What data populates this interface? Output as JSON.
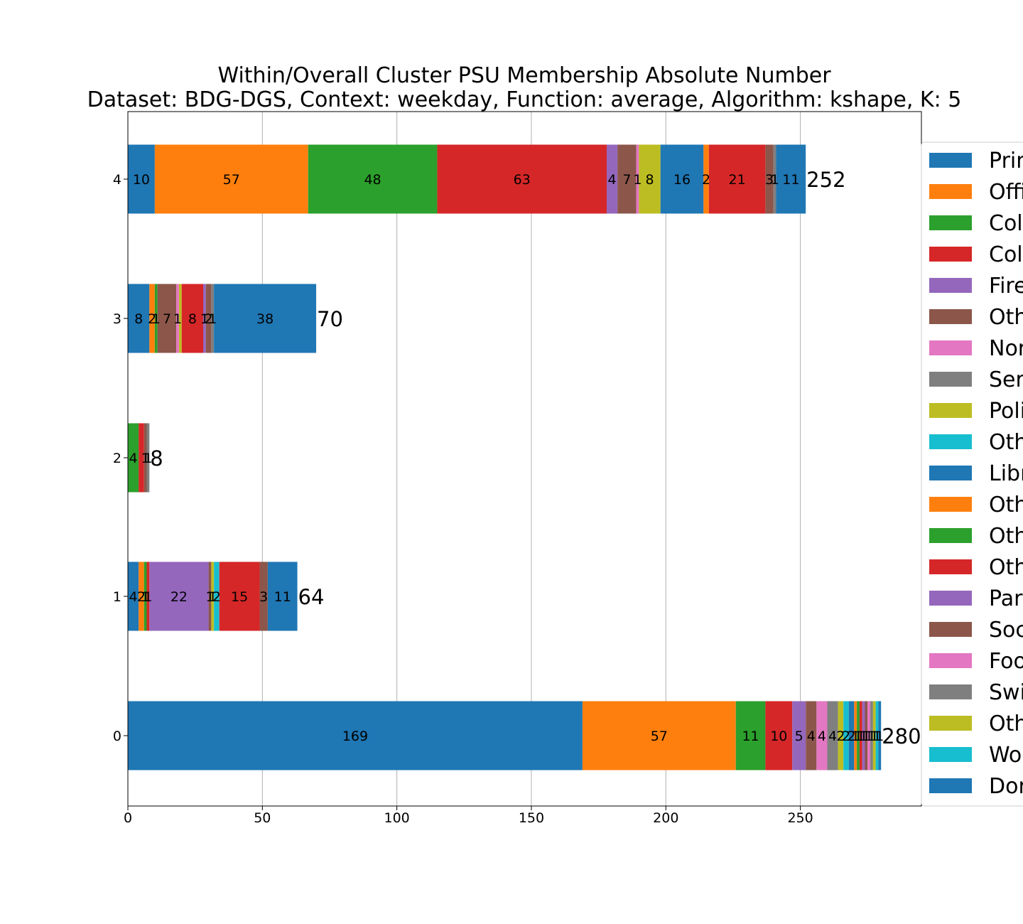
{
  "chart_data": {
    "type": "bar",
    "orientation": "horizontal",
    "stacked": true,
    "title": "Within/Overall Cluster PSU Membership Absolute Number",
    "subtitle": "Dataset: BDG-DGS, Context: weekday, Function: average, Algorithm: kshape, K: 5",
    "xlabel": "",
    "ylabel": "",
    "xlim": [
      0,
      295
    ],
    "x_ticks": [
      0,
      50,
      100,
      150,
      200,
      250
    ],
    "categories": [
      "0",
      "1",
      "2",
      "3",
      "4"
    ],
    "grid": "vertical",
    "legend_position": "right",
    "legend": [
      {
        "label": "Prim",
        "color": "#1f77b4"
      },
      {
        "label": "Offi",
        "color": "#ff7f0e"
      },
      {
        "label": "Col",
        "color": "#2ca02c"
      },
      {
        "label": "Col",
        "color": "#d62728"
      },
      {
        "label": "Fire",
        "color": "#9467bd"
      },
      {
        "label": "Oth",
        "color": "#8c564b"
      },
      {
        "label": "Nor",
        "color": "#e377c2"
      },
      {
        "label": "Ser",
        "color": "#7f7f7f"
      },
      {
        "label": "Poli",
        "color": "#bcbd22"
      },
      {
        "label": "Oth",
        "color": "#17becf"
      },
      {
        "label": "Libr",
        "color": "#1f77b4"
      },
      {
        "label": "Oth",
        "color": "#ff7f0e"
      },
      {
        "label": "Oth",
        "color": "#2ca02c"
      },
      {
        "label": "Oth",
        "color": "#d62728"
      },
      {
        "label": "Par",
        "color": "#9467bd"
      },
      {
        "label": "Soc",
        "color": "#8c564b"
      },
      {
        "label": "Foo",
        "color": "#e377c2"
      },
      {
        "label": "Swi",
        "color": "#7f7f7f"
      },
      {
        "label": "Oth",
        "color": "#bcbd22"
      },
      {
        "label": "Wo",
        "color": "#17becf"
      },
      {
        "label": "Dor",
        "color": "#1f77b4"
      }
    ],
    "rows": [
      {
        "category": "0",
        "total": "280",
        "segments": [
          169,
          57,
          11,
          10,
          5,
          4,
          4,
          4,
          2,
          2,
          2,
          1,
          1,
          1,
          1,
          1,
          1,
          1,
          1,
          1,
          1
        ],
        "labels": [
          "169",
          "57",
          "11",
          "10",
          "5",
          "4",
          "4",
          "4",
          "2",
          "2",
          "2",
          "1",
          "1",
          "1",
          "1",
          "1",
          "1",
          "1",
          "1",
          "1",
          "1"
        ]
      },
      {
        "category": "1",
        "total": "64",
        "segments": [
          4,
          2,
          1,
          0,
          1,
          0,
          0,
          0,
          0,
          0,
          0,
          0,
          0,
          0,
          22,
          1,
          0,
          0,
          1,
          2,
          0,
          15,
          3,
          11
        ],
        "labels": [
          "4",
          "2",
          "1",
          "",
          "1",
          "",
          "",
          "",
          "",
          "",
          "",
          "",
          "",
          "",
          "22",
          "1",
          "",
          "",
          "1",
          "2",
          "",
          "15",
          "3",
          "11"
        ]
      },
      {
        "category": "2",
        "total": "8",
        "segments": [
          0,
          0,
          4,
          2,
          0,
          1,
          0,
          1
        ],
        "labels": [
          "",
          "",
          "4",
          "",
          "",
          "1",
          "",
          "1"
        ]
      },
      {
        "category": "3",
        "total": "70",
        "segments": [
          8,
          2,
          1,
          7,
          1,
          1,
          8,
          1,
          2,
          1,
          38
        ],
        "labels": [
          "8",
          "2",
          "1",
          "7",
          "1",
          "",
          "8",
          "1",
          "2",
          "1",
          "38"
        ]
      },
      {
        "category": "4",
        "total": "252",
        "segments": [
          10,
          57,
          48,
          63,
          4,
          7,
          1,
          8,
          16,
          2,
          21,
          3,
          1,
          11
        ],
        "labels": [
          "10",
          "57",
          "48",
          "63",
          "4",
          "7",
          "1",
          "8",
          "16",
          "2",
          "21",
          "3",
          "1",
          "11"
        ]
      }
    ],
    "segment_colors": {
      "0": [
        "#1f77b4",
        "#ff7f0e",
        "#2ca02c",
        "#d62728",
        "#9467bd",
        "#8c564b",
        "#e377c2",
        "#7f7f7f",
        "#bcbd22",
        "#17becf",
        "#1f77b4",
        "#ff7f0e",
        "#2ca02c",
        "#d62728",
        "#9467bd",
        "#8c564b",
        "#e377c2",
        "#7f7f7f",
        "#bcbd22",
        "#17becf",
        "#1f77b4"
      ],
      "1": [
        "#1f77b4",
        "#ff7f0e",
        "#2ca02c",
        "#d62728",
        "#d62728",
        "#9467bd",
        "#8c564b",
        "#e377c2",
        "#7f7f7f",
        "#bcbd22",
        "#17becf",
        "#1f77b4",
        "#ff7f0e",
        "#2ca02c",
        "#9467bd",
        "#8c564b",
        "#e377c2",
        "#7f7f7f",
        "#bcbd22",
        "#17becf",
        "#1f77b4",
        "#d62728",
        "#8c564b",
        "#1f77b4"
      ],
      "2": [
        "#1f77b4",
        "#ff7f0e",
        "#2ca02c",
        "#d62728",
        "#9467bd",
        "#8c564b",
        "#e377c2",
        "#7f7f7f"
      ],
      "3": [
        "#1f77b4",
        "#ff7f0e",
        "#2ca02c",
        "#8c564b",
        "#e377c2",
        "#bcbd22",
        "#d62728",
        "#9467bd",
        "#8c564b",
        "#7f7f7f",
        "#1f77b4"
      ],
      "4": [
        "#1f77b4",
        "#ff7f0e",
        "#2ca02c",
        "#d62728",
        "#9467bd",
        "#8c564b",
        "#e377c2",
        "#bcbd22",
        "#1f77b4",
        "#ff7f0e",
        "#d62728",
        "#8c564b",
        "#7f7f7f",
        "#1f77b4"
      ]
    }
  }
}
